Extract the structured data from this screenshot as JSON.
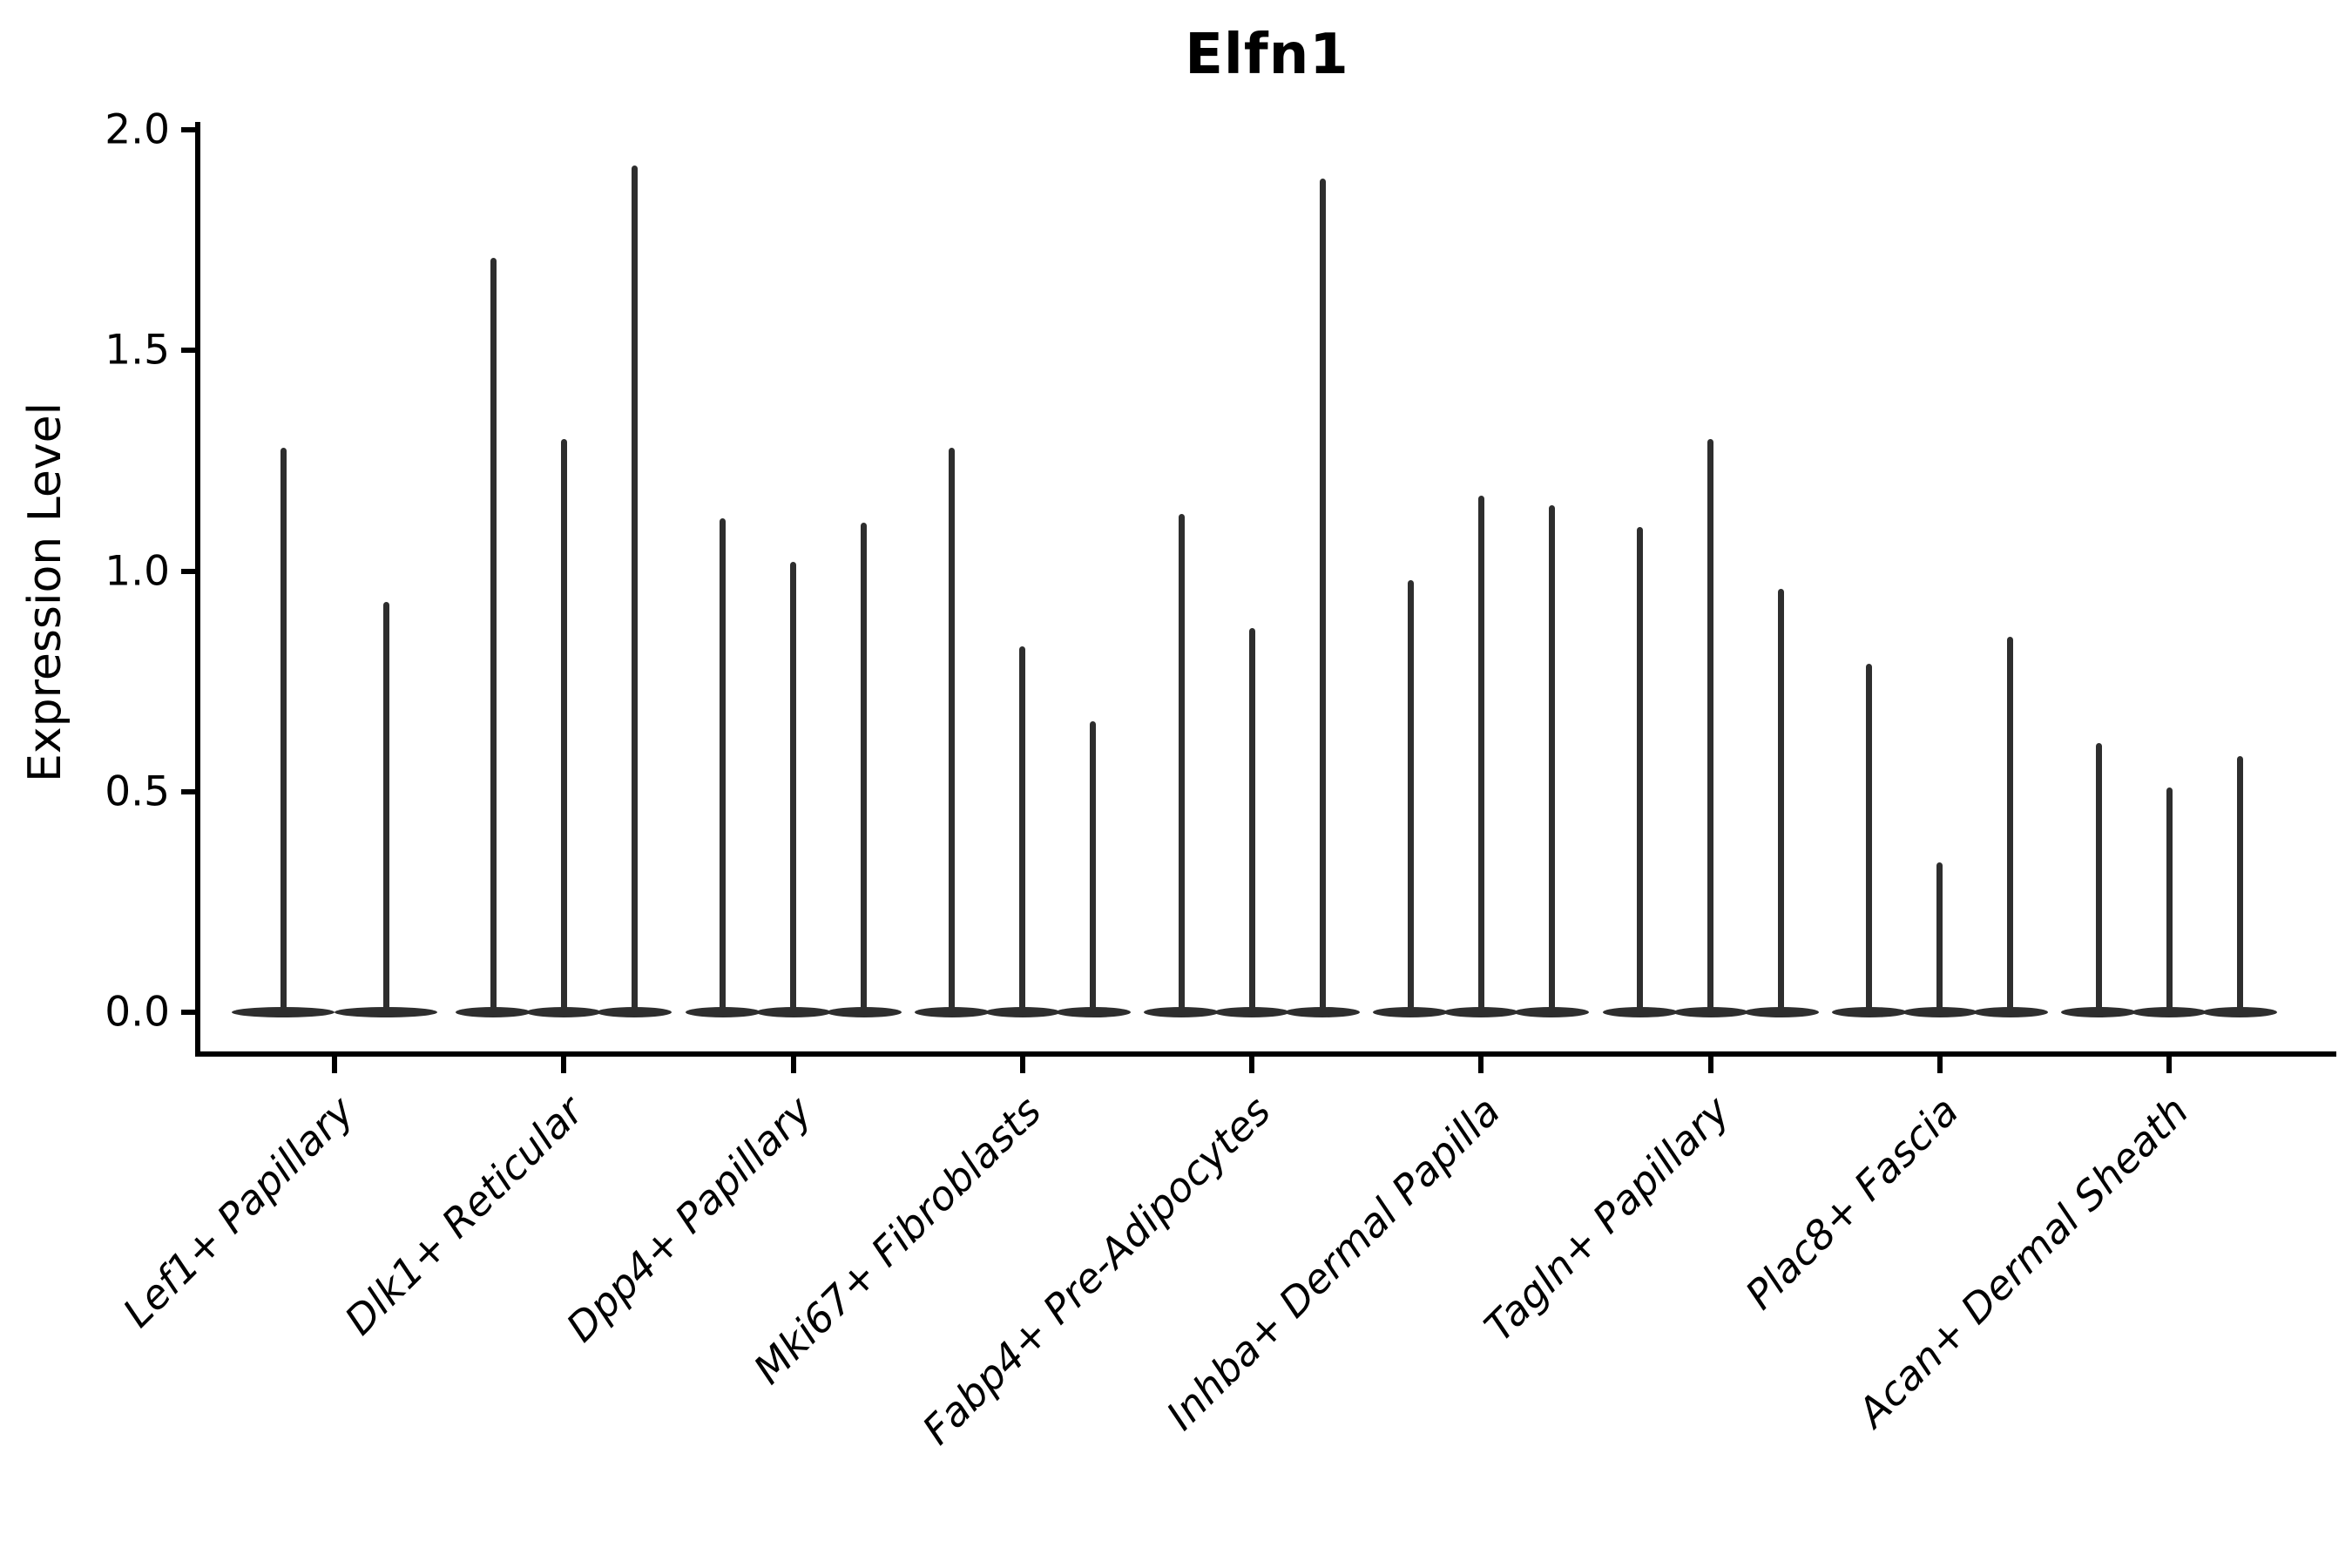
{
  "chart_data": {
    "type": "violin",
    "title": "Elfn1",
    "ylabel": "Expression Level",
    "xlabel": "",
    "ylim": [
      0.0,
      2.0
    ],
    "yticks": [
      0.0,
      0.5,
      1.0,
      1.5,
      2.0
    ],
    "ytick_labels": [
      "0.0",
      "0.5",
      "1.0",
      "1.5",
      "2.0"
    ],
    "grid": false,
    "legend": "none",
    "violin_color": "#2e2e2e",
    "axis_color": "#000000",
    "categories": [
      "Lef1+ Papillary",
      "Dlk1+ Reticular",
      "Dpp4+ Papillary",
      "Mki67+ Fibroblasts",
      "Fabp4+ Pre-Adipocytes",
      "Inhba+ Dermal Papilla",
      "Tagln+ Papillary",
      "Plac8+ Fascia",
      "Acan+ Dermal Sheath"
    ],
    "groups": [
      {
        "category": "Lef1+ Papillary",
        "violin_maxima": [
          1.28,
          0.93
        ]
      },
      {
        "category": "Dlk1+ Reticular",
        "violin_maxima": [
          1.71,
          1.3,
          1.92
        ]
      },
      {
        "category": "Dpp4+ Papillary",
        "violin_maxima": [
          1.12,
          1.02,
          1.11
        ]
      },
      {
        "category": "Mki67+ Fibroblasts",
        "violin_maxima": [
          1.28,
          0.83,
          0.66
        ]
      },
      {
        "category": "Fabp4+ Pre-Adipocytes",
        "violin_maxima": [
          1.13,
          0.87,
          1.89
        ]
      },
      {
        "category": "Inhba+ Dermal Papilla",
        "violin_maxima": [
          0.98,
          1.17,
          1.15
        ]
      },
      {
        "category": "Tagln+ Papillary",
        "violin_maxima": [
          1.1,
          1.3,
          0.96
        ]
      },
      {
        "category": "Plac8+ Fascia",
        "violin_maxima": [
          0.79,
          0.34,
          0.85
        ]
      },
      {
        "category": "Acan+ Dermal Sheath",
        "violin_maxima": [
          0.61,
          0.51,
          0.58
        ]
      }
    ],
    "shape_note": "Each violin is a wide flat base at expression 0 with a thin spike rising to its maximum expression value; most cells express 0."
  }
}
